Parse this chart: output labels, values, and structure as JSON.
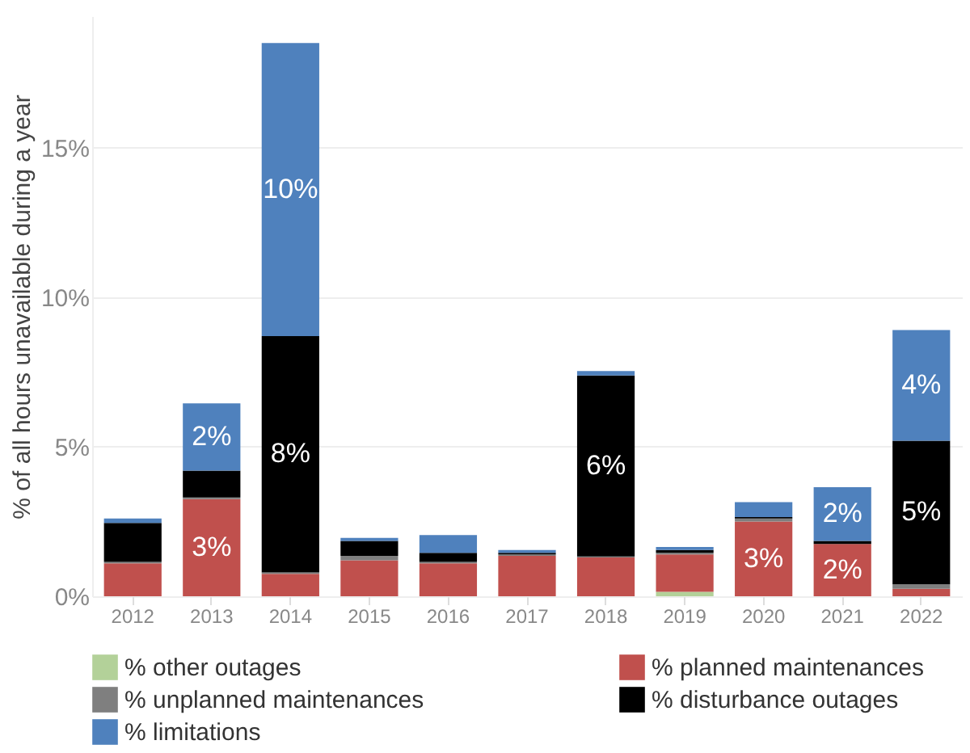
{
  "chart_data": {
    "type": "bar",
    "stacked": true,
    "ylabel": "% of all hours unavailable during a year",
    "categories": [
      "2012",
      "2013",
      "2014",
      "2015",
      "2016",
      "2017",
      "2018",
      "2019",
      "2020",
      "2021",
      "2022"
    ],
    "series": [
      {
        "name": "% other outages",
        "color": "#b3d199",
        "values": [
          0,
          0,
          0,
          0,
          0,
          0,
          0,
          0.15,
          0,
          0,
          0
        ],
        "value_labels": [
          null,
          null,
          null,
          null,
          null,
          null,
          null,
          null,
          null,
          null,
          null
        ]
      },
      {
        "name": "% planned maintenances",
        "color": "#c0504d",
        "values": [
          1.1,
          3.25,
          0.75,
          1.2,
          1.1,
          1.35,
          1.3,
          1.25,
          2.5,
          1.75,
          0.25
        ],
        "value_labels": [
          null,
          "3%",
          null,
          null,
          null,
          null,
          null,
          null,
          "3%",
          "2%",
          null
        ]
      },
      {
        "name": "% unplanned maintenances",
        "color": "#7f7f7f",
        "values": [
          0.05,
          0.05,
          0.05,
          0.15,
          0.05,
          0.05,
          0.03,
          0.05,
          0.1,
          0,
          0.15
        ],
        "value_labels": [
          null,
          null,
          null,
          null,
          null,
          null,
          null,
          null,
          null,
          null,
          null
        ]
      },
      {
        "name": "% disturbance outages",
        "color": "#000000",
        "values": [
          1.3,
          0.9,
          7.9,
          0.5,
          0.3,
          0.05,
          6.05,
          0.1,
          0.05,
          0.1,
          4.8
        ],
        "value_labels": [
          null,
          null,
          "8%",
          null,
          null,
          null,
          "6%",
          null,
          null,
          null,
          "5%"
        ]
      },
      {
        "name": "% limitations",
        "color": "#4f81bd",
        "values": [
          0.15,
          2.25,
          9.8,
          0.1,
          0.6,
          0.1,
          0.15,
          0.1,
          0.5,
          1.8,
          3.7
        ],
        "value_labels": [
          null,
          "2%",
          "10%",
          null,
          null,
          null,
          null,
          null,
          null,
          "2%",
          "4%"
        ]
      }
    ],
    "ylim": [
      0,
      19.4
    ],
    "yticks": [
      {
        "value": 0,
        "label": "0%"
      },
      {
        "value": 5,
        "label": "5%"
      },
      {
        "value": 10,
        "label": "10%"
      },
      {
        "value": 15,
        "label": "15%"
      }
    ],
    "grid": "y",
    "legend": "bottom"
  }
}
